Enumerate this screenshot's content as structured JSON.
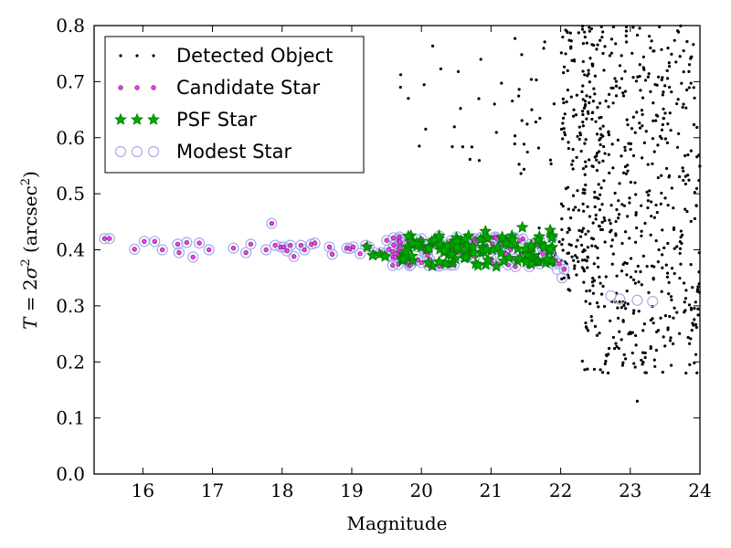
{
  "chart_data": {
    "type": "scatter",
    "title": "",
    "xlabel": "Magnitude",
    "ylabel_parts": {
      "T": "T",
      "eq": " = 2",
      "sigma": "σ",
      "sq": "2",
      "unit": " (arcsec",
      "unit_sq": "2",
      "close": ")"
    },
    "xlim": [
      15.3,
      24
    ],
    "ylim": [
      0.0,
      0.8
    ],
    "xticks": [
      16,
      17,
      18,
      19,
      20,
      21,
      22,
      23,
      24
    ],
    "yticks": [
      0.0,
      0.1,
      0.2,
      0.3,
      0.4,
      0.5,
      0.6,
      0.7,
      0.8
    ],
    "ytick_labels": [
      "0.0",
      "0.1",
      "0.2",
      "0.3",
      "0.4",
      "0.5",
      "0.6",
      "0.7",
      "0.8"
    ],
    "grid": false,
    "legend_position": "top-left",
    "series": [
      {
        "name": "Detected Object",
        "marker": "dot",
        "color": "#000000",
        "generated": {
          "seed": 7,
          "clusters": [
            {
              "n": 520,
              "x": [
                22.3,
                24.0
              ],
              "y": [
                0.18,
                0.8
              ]
            },
            {
              "n": 120,
              "x": [
                22.0,
                22.6
              ],
              "y": [
                0.32,
                0.8
              ]
            },
            {
              "n": 40,
              "x": [
                21.3,
                22.2
              ],
              "y": [
                0.5,
                0.8
              ]
            },
            {
              "n": 18,
              "x": [
                19.7,
                21.2
              ],
              "y": [
                0.55,
                0.8
              ]
            },
            {
              "n": 40,
              "x": [
                21.6,
                22.4
              ],
              "y": [
                0.36,
                0.45
              ]
            }
          ]
        },
        "x": [
          23.1,
          22.05,
          19.97,
          19.7,
          21.05,
          23.8,
          23.3
        ],
        "y": [
          0.13,
          0.35,
          0.585,
          0.69,
          0.66,
          0.18,
          0.46
        ]
      },
      {
        "name": "Candidate Star",
        "marker": "circle-small",
        "color": "#ff33ff",
        "x": [
          15.45,
          15.52,
          15.88,
          16.02,
          16.17,
          16.28,
          16.5,
          16.52,
          16.63,
          16.72,
          16.81,
          16.95,
          17.3,
          17.48,
          17.55,
          17.77,
          17.85,
          17.9,
          17.98,
          18.02,
          18.07,
          18.12,
          18.17,
          18.27,
          18.32,
          18.42,
          18.47,
          18.68,
          18.72,
          18.93,
          18.97,
          19.02,
          19.12,
          19.2,
          19.25,
          19.32,
          19.42,
          19.48,
          21.1,
          21.35,
          21.55,
          21.7,
          21.8,
          21.85,
          21.92,
          21.98,
          22.05
        ],
        "y": [
          0.42,
          0.42,
          0.401,
          0.415,
          0.415,
          0.4,
          0.41,
          0.395,
          0.413,
          0.387,
          0.412,
          0.4,
          0.403,
          0.395,
          0.41,
          0.4,
          0.447,
          0.408,
          0.405,
          0.405,
          0.398,
          0.408,
          0.388,
          0.408,
          0.4,
          0.41,
          0.412,
          0.405,
          0.392,
          0.403,
          0.402,
          0.405,
          0.393,
          0.408,
          0.405,
          0.395,
          0.395,
          0.393,
          0.375,
          0.37,
          0.37,
          0.375,
          0.385,
          0.4,
          0.38,
          0.375,
          0.365
        ],
        "generated": {
          "seed": 23,
          "clusters": [
            {
              "n": 110,
              "x": [
                19.5,
                21.9
              ],
              "y": [
                0.37,
                0.425
              ]
            }
          ]
        }
      },
      {
        "name": "PSF Star",
        "marker": "star",
        "color": "#008000",
        "x": [
          19.22,
          19.3,
          19.4,
          19.48,
          19.72,
          19.8,
          19.85,
          19.9,
          20.0,
          20.08,
          20.15,
          20.25,
          20.32,
          20.4,
          20.48,
          20.55,
          20.62,
          20.7,
          20.78,
          20.85,
          20.92,
          20.95,
          21.02,
          21.1,
          21.18,
          21.25,
          21.3,
          21.38,
          21.45,
          21.52,
          21.6,
          21.68,
          21.72,
          21.78,
          21.85,
          21.88
        ],
        "y": [
          0.405,
          0.39,
          0.392,
          0.388,
          0.385,
          0.405,
          0.425,
          0.41,
          0.405,
          0.4,
          0.415,
          0.42,
          0.405,
          0.395,
          0.41,
          0.4,
          0.385,
          0.4,
          0.375,
          0.395,
          0.433,
          0.42,
          0.4,
          0.405,
          0.38,
          0.41,
          0.425,
          0.38,
          0.44,
          0.395,
          0.39,
          0.38,
          0.41,
          0.405,
          0.435,
          0.425
        ],
        "generated": {
          "seed": 41,
          "clusters": [
            {
              "n": 90,
              "x": [
                19.7,
                21.9
              ],
              "y": [
                0.37,
                0.425
              ]
            }
          ]
        }
      },
      {
        "name": "Modest Star",
        "marker": "circle-open",
        "color": "#aaaaee",
        "x": [
          22.72,
          22.85,
          23.1,
          23.32,
          22.02,
          21.95
        ],
        "y": [
          0.318,
          0.312,
          0.31,
          0.308,
          0.35,
          0.365
        ],
        "follows_candidate": true
      }
    ]
  }
}
